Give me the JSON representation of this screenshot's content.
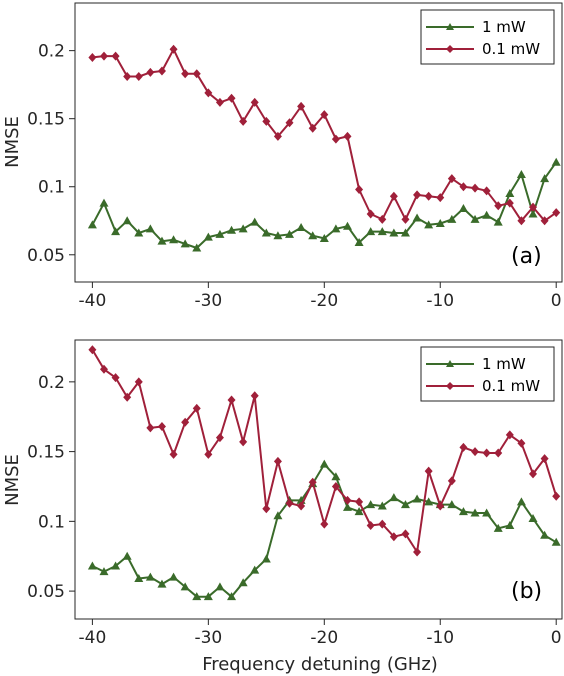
{
  "chart_data": [
    {
      "type": "line",
      "panel_label": "(a)",
      "xlabel": "",
      "ylabel": "NMSE",
      "xlim": [
        -41.5,
        0.5
      ],
      "ylim": [
        0.03,
        0.235
      ],
      "xticks": [
        -40,
        -30,
        -20,
        -10,
        0
      ],
      "yticks": [
        0.05,
        0.1,
        0.15,
        0.2
      ],
      "ytick_labels": [
        "0.05",
        "0.1",
        "0.15",
        "0.2"
      ],
      "legend": "top-right",
      "series": [
        {
          "name": "1 mW",
          "color": "#3a6b2a",
          "marker": "triangle",
          "x": [
            -40,
            -39,
            -38,
            -37,
            -36,
            -35,
            -34,
            -33,
            -32,
            -31,
            -30,
            -29,
            -28,
            -27,
            -26,
            -25,
            -24,
            -23,
            -22,
            -21,
            -20,
            -19,
            -18,
            -17,
            -16,
            -15,
            -14,
            -13,
            -12,
            -11,
            -10,
            -9,
            -8,
            -7,
            -6,
            -5,
            -4,
            -3,
            -2,
            -1,
            0
          ],
          "y": [
            0.072,
            0.088,
            0.067,
            0.075,
            0.066,
            0.069,
            0.06,
            0.061,
            0.058,
            0.055,
            0.063,
            0.065,
            0.068,
            0.069,
            0.074,
            0.066,
            0.064,
            0.065,
            0.07,
            0.064,
            0.062,
            0.069,
            0.071,
            0.059,
            0.067,
            0.067,
            0.066,
            0.066,
            0.077,
            0.072,
            0.073,
            0.076,
            0.084,
            0.076,
            0.079,
            0.074,
            0.095,
            0.109,
            0.08,
            0.106,
            0.118
          ]
        },
        {
          "name": "0.1 mW",
          "color": "#a0203a",
          "marker": "diamond",
          "x": [
            -40,
            -39,
            -38,
            -37,
            -36,
            -35,
            -34,
            -33,
            -32,
            -31,
            -30,
            -29,
            -28,
            -27,
            -26,
            -25,
            -24,
            -23,
            -22,
            -21,
            -20,
            -19,
            -18,
            -17,
            -16,
            -15,
            -14,
            -13,
            -12,
            -11,
            -10,
            -9,
            -8,
            -7,
            -6,
            -5,
            -4,
            -3,
            -2,
            -1,
            0
          ],
          "y": [
            0.195,
            0.196,
            0.196,
            0.181,
            0.181,
            0.184,
            0.185,
            0.201,
            0.183,
            0.183,
            0.169,
            0.162,
            0.165,
            0.148,
            0.162,
            0.148,
            0.137,
            0.147,
            0.159,
            0.143,
            0.153,
            0.135,
            0.137,
            0.098,
            0.08,
            0.076,
            0.093,
            0.076,
            0.094,
            0.093,
            0.092,
            0.106,
            0.1,
            0.099,
            0.097,
            0.086,
            0.088,
            0.075,
            0.085,
            0.075,
            0.081
          ]
        }
      ]
    },
    {
      "type": "line",
      "panel_label": "(b)",
      "xlabel": "Frequency detuning (GHz)",
      "ylabel": "NMSE",
      "xlim": [
        -41.5,
        0.5
      ],
      "ylim": [
        0.03,
        0.23
      ],
      "xticks": [
        -40,
        -30,
        -20,
        -10,
        0
      ],
      "yticks": [
        0.05,
        0.1,
        0.15,
        0.2
      ],
      "ytick_labels": [
        "0.05",
        "0.1",
        "0.15",
        "0.2"
      ],
      "legend": "top-right",
      "series": [
        {
          "name": "1 mW",
          "color": "#3a6b2a",
          "marker": "triangle",
          "x": [
            -40,
            -39,
            -38,
            -37,
            -36,
            -35,
            -34,
            -33,
            -32,
            -31,
            -30,
            -29,
            -28,
            -27,
            -26,
            -25,
            -24,
            -23,
            -22,
            -21,
            -20,
            -19,
            -18,
            -17,
            -16,
            -15,
            -14,
            -13,
            -12,
            -11,
            -10,
            -9,
            -8,
            -7,
            -6,
            -5,
            -4,
            -3,
            -2,
            -1,
            0
          ],
          "y": [
            0.068,
            0.064,
            0.068,
            0.075,
            0.059,
            0.06,
            0.055,
            0.06,
            0.053,
            0.046,
            0.046,
            0.053,
            0.046,
            0.056,
            0.065,
            0.073,
            0.104,
            0.115,
            0.115,
            0.127,
            0.141,
            0.132,
            0.11,
            0.107,
            0.112,
            0.111,
            0.117,
            0.112,
            0.116,
            0.114,
            0.112,
            0.112,
            0.107,
            0.106,
            0.106,
            0.095,
            0.097,
            0.114,
            0.102,
            0.09,
            0.085
          ]
        },
        {
          "name": "0.1 mW",
          "color": "#a0203a",
          "marker": "diamond",
          "x": [
            -40,
            -39,
            -38,
            -37,
            -36,
            -35,
            -34,
            -33,
            -32,
            -31,
            -30,
            -29,
            -28,
            -27,
            -26,
            -25,
            -24,
            -23,
            -22,
            -21,
            -20,
            -19,
            -18,
            -17,
            -16,
            -15,
            -14,
            -13,
            -12,
            -11,
            -10,
            -9,
            -8,
            -7,
            -6,
            -5,
            -4,
            -3,
            -2,
            -1,
            0
          ],
          "y": [
            0.223,
            0.209,
            0.203,
            0.189,
            0.2,
            0.167,
            0.168,
            0.148,
            0.171,
            0.181,
            0.148,
            0.16,
            0.187,
            0.157,
            0.19,
            0.109,
            0.143,
            0.113,
            0.111,
            0.128,
            0.098,
            0.125,
            0.115,
            0.114,
            0.097,
            0.098,
            0.089,
            0.091,
            0.078,
            0.136,
            0.111,
            0.129,
            0.153,
            0.15,
            0.149,
            0.149,
            0.162,
            0.156,
            0.134,
            0.145,
            0.118
          ]
        }
      ]
    }
  ]
}
